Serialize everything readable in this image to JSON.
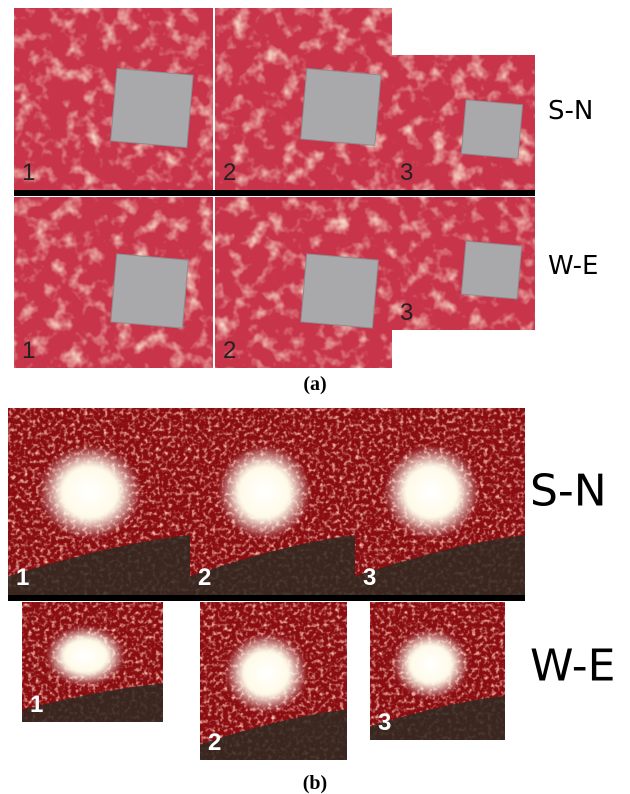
{
  "figure": {
    "panels": [
      {
        "caption": "(a)",
        "rows": [
          {
            "label": "S-N",
            "images": [
              "1",
              "2",
              "3"
            ]
          },
          {
            "label": "W-E",
            "images": [
              "1",
              "2",
              "3"
            ]
          }
        ]
      },
      {
        "caption": "(b)",
        "rows": [
          {
            "label": "S-N",
            "images": [
              "1",
              "2",
              "3"
            ]
          },
          {
            "label": "W-E",
            "images": [
              "1",
              "2",
              "3"
            ]
          }
        ]
      }
    ]
  }
}
